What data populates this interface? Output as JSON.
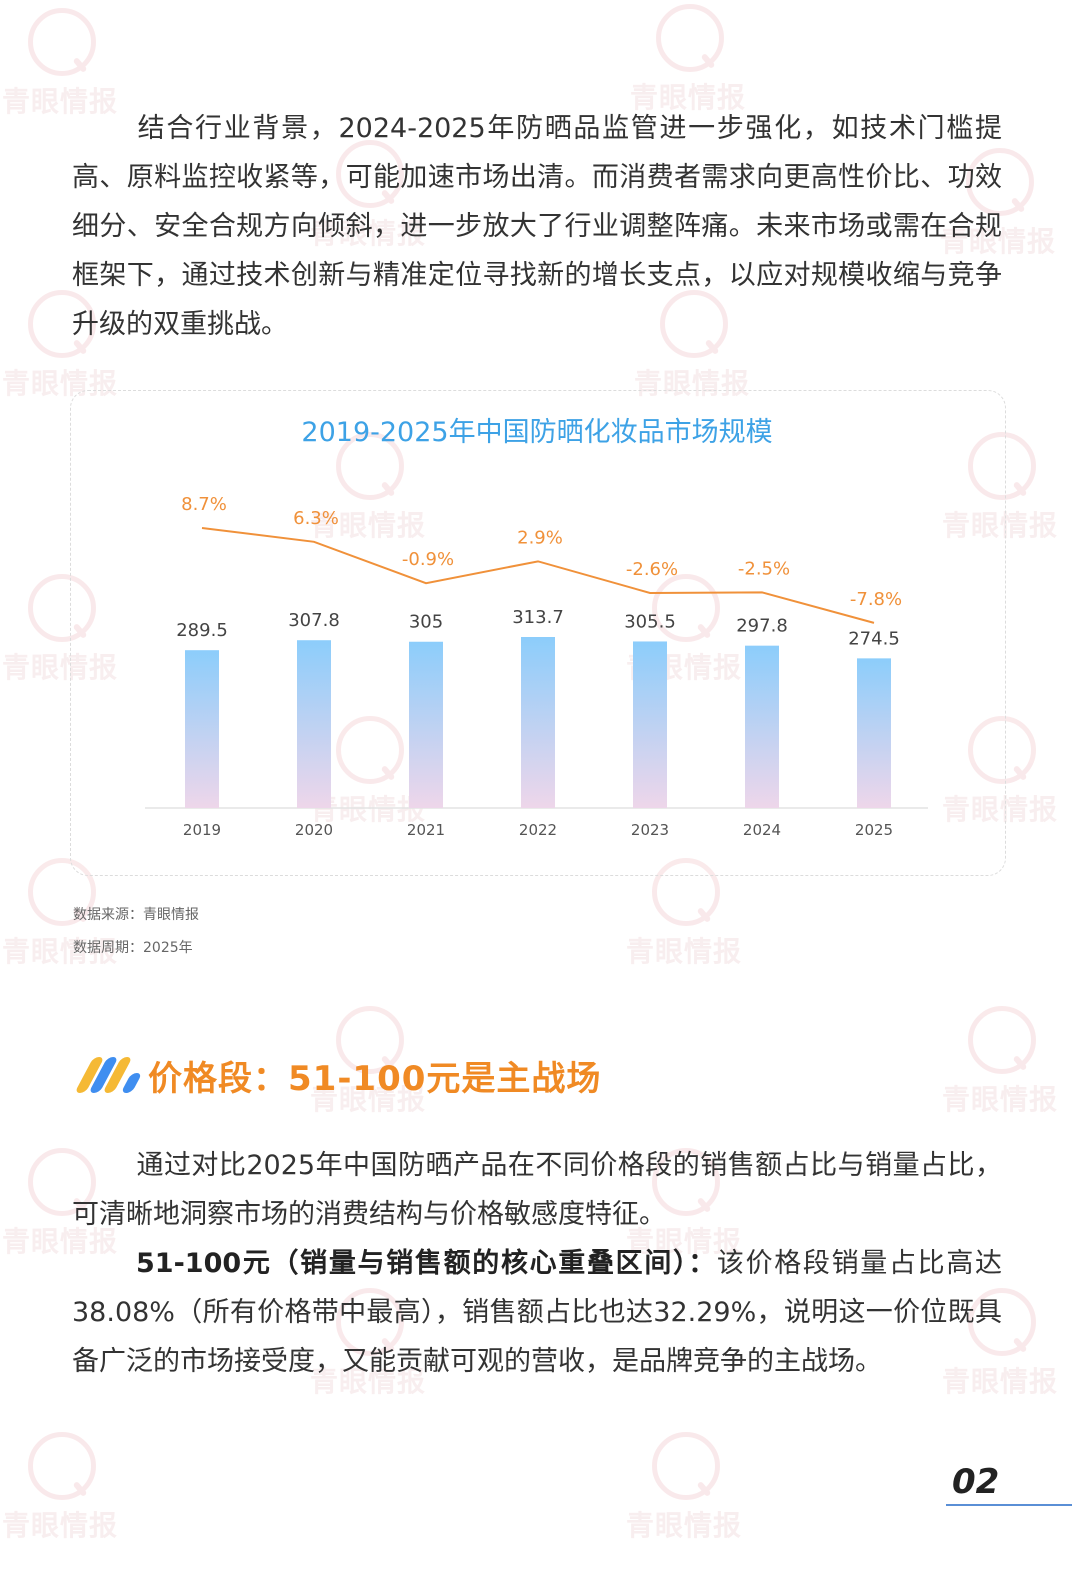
{
  "paragraph1": "结合行业背景，2024-2025年防晒品监管进一步强化，如技术门槛提高、原料监控收紧等，可能加速市场出清。而消费者需求向更高性价比、功效细分、安全合规方向倾斜，进一步放大了行业调整阵痛。未来市场或需在合规框架下，通过技术创新与精准定位寻找新的增长支点，以应对规模收缩与竞争升级的双重挑战。",
  "chart_data": {
    "type": "bar",
    "title": "2019-2025年中国防晒化妆品市场规模",
    "categories": [
      "2019",
      "2020",
      "2021",
      "2022",
      "2023",
      "2024",
      "2025"
    ],
    "values": [
      289.5,
      307.8,
      305,
      313.7,
      305.5,
      297.8,
      274.5
    ],
    "value_labels": [
      "289.5",
      "307.8",
      "305",
      "313.7",
      "305.5",
      "297.8",
      "274.5"
    ],
    "growth": {
      "type": "line",
      "values": [
        8.7,
        6.3,
        -0.9,
        2.9,
        -2.6,
        -2.5,
        -7.8
      ],
      "labels": [
        "8.7%",
        "6.3%",
        "-0.9%",
        "2.9%",
        "-2.6%",
        "-2.5%",
        "-7.8%"
      ],
      "color": "#f0913a"
    },
    "bar_gradient": [
      "#8ccdfb",
      "#eed6ea"
    ],
    "grid": false,
    "legend": "none"
  },
  "source": {
    "line1": "数据来源：青眼情报",
    "line2": "数据周期：2025年"
  },
  "section": {
    "title": "价格段：51-100元是主战场",
    "logo_colors": [
      "#f5b935",
      "#3f8ef0",
      "#f5b935",
      "#3f8ef0"
    ]
  },
  "paragraph2": "通过对比2025年中国防晒产品在不同价格段的销售额占比与销量占比，可清晰地洞察市场的消费结构与价格敏感度特征。",
  "paragraph3": {
    "bold": "51-100元（销量与销售额的核心重叠区间）：",
    "text": "该价格段销量占比高达38.08%（所有价格带中最高），销售额占比也达32.29%，说明这一价位既具备广泛的市场接受度，又能贡献可观的营收，是品牌竞争的主战场。"
  },
  "watermark": {
    "text": "青眼情报",
    "color": "#e8a0a6"
  },
  "page_number": "02"
}
